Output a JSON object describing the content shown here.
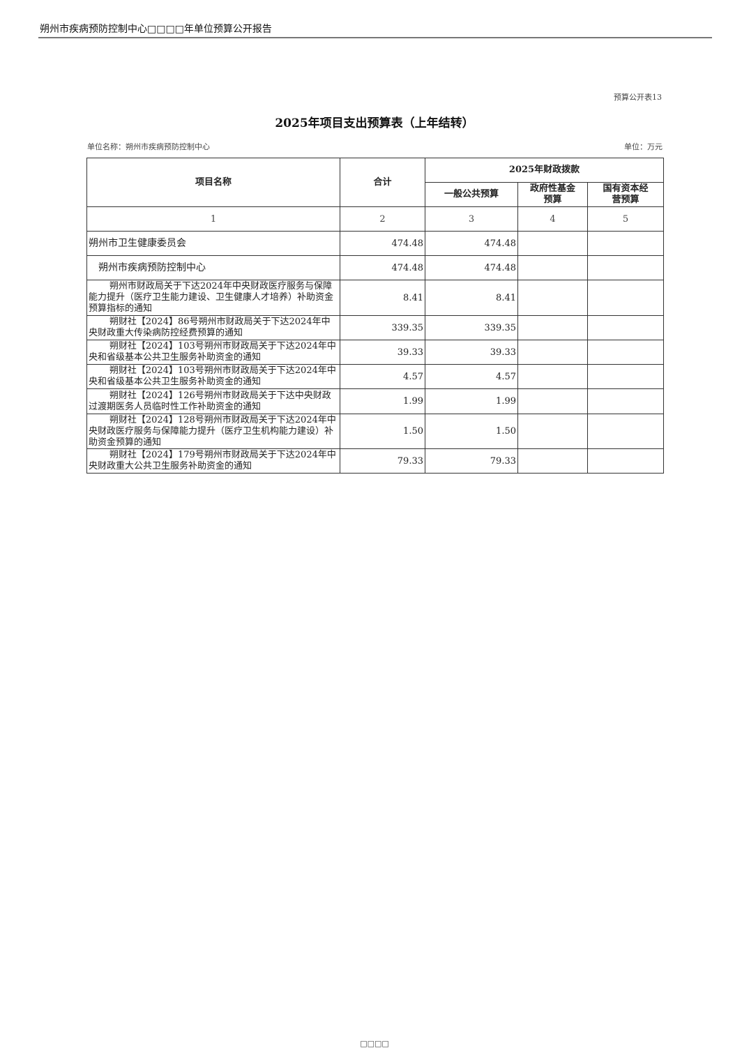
{
  "running_header": "朔州市疾病预防控制中心□□□□年单位预算公开报告",
  "table_code": "预算公开表13",
  "title": "2025年项目支出预算表（上年结转）",
  "unit_name": "单位名称：朔州市疾病预防控制中心",
  "unit": "单位：万元",
  "headers": {
    "name": "项目名称",
    "total": "合计",
    "group": "2025年财政拨款",
    "general": "一般公共预算",
    "fund": "政府性基金预算",
    "state": "国有资本经营预算"
  },
  "col_numbers": [
    "1",
    "2",
    "3",
    "4",
    "5"
  ],
  "rows": [
    {
      "name": "朔州市卫生健康委员会",
      "total": "474.48",
      "general": "474.48",
      "fund": "",
      "state": ""
    },
    {
      "name": "朔州市疾病预防控制中心",
      "total": "474.48",
      "general": "474.48",
      "fund": "",
      "state": ""
    },
    {
      "name": "朔州市财政局关于下达2024年中央财政医疗服务与保障能力提升（医疗卫生能力建设、卫生健康人才培养）补助资金预算指标的通知",
      "total": "8.41",
      "general": "8.41",
      "fund": "",
      "state": ""
    },
    {
      "name": "朔财社【2024】86号朔州市财政局关于下达2024年中央财政重大传染病防控经费预算的通知",
      "total": "339.35",
      "general": "339.35",
      "fund": "",
      "state": ""
    },
    {
      "name": "朔财社【2024】103号朔州市财政局关于下达2024年中央和省级基本公共卫生服务补助资金的通知",
      "total": "39.33",
      "general": "39.33",
      "fund": "",
      "state": ""
    },
    {
      "name": "朔财社【2024】103号朔州市财政局关于下达2024年中央和省级基本公共卫生服务补助资金的通知",
      "total": "4.57",
      "general": "4.57",
      "fund": "",
      "state": ""
    },
    {
      "name": "朔财社【2024】126号朔州市财政局关于下达中央财政过渡期医务人员临时性工作补助资金的通知",
      "total": "1.99",
      "general": "1.99",
      "fund": "",
      "state": ""
    },
    {
      "name": "朔财社【2024】128号朔州市财政局关于下达2024年中央财政医疗服务与保障能力提升（医疗卫生机构能力建设）补助资金预算的通知",
      "total": "1.50",
      "general": "1.50",
      "fund": "",
      "state": ""
    },
    {
      "name": "朔财社【2024】179号朔州市财政局关于下达2024年中央财政重大公共卫生服务补助资金的通知",
      "total": "79.33",
      "general": "79.33",
      "fund": "",
      "state": ""
    }
  ],
  "footer": "□□□□"
}
